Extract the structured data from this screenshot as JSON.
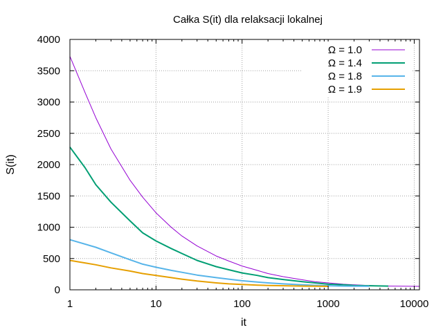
{
  "chart_data": {
    "type": "line",
    "title": "Całka S(it) dla relaksacji lokalnej",
    "xlabel": "it",
    "ylabel": "S(it)",
    "x_scale": "log",
    "xlim": [
      1,
      11500
    ],
    "ylim": [
      0,
      4000
    ],
    "grid": true,
    "legend_position": "top-right",
    "x_ticks": [
      1,
      10,
      100,
      1000,
      10000
    ],
    "x_tick_labels": [
      "1",
      "10",
      "100",
      "1000",
      "10000"
    ],
    "y_ticks": [
      0,
      500,
      1000,
      1500,
      2000,
      2500,
      3000,
      3500,
      4000
    ],
    "y_tick_labels": [
      "0",
      "500",
      "1000",
      "1500",
      "2000",
      "2500",
      "3000",
      "3500",
      "4000"
    ],
    "series": [
      {
        "name": "Ω = 1.0",
        "color": "#9400d3",
        "x": [
          1,
          1.5,
          2,
          3,
          5,
          7,
          10,
          15,
          20,
          30,
          50,
          70,
          100,
          150,
          200,
          300,
          500,
          700,
          1000,
          1500,
          2000,
          3000,
          5000,
          7000,
          11500
        ],
        "y": [
          3730,
          3150,
          2750,
          2250,
          1750,
          1480,
          1230,
          1000,
          860,
          700,
          540,
          460,
          380,
          310,
          260,
          210,
          160,
          130,
          110,
          90,
          80,
          70,
          60,
          58,
          55
        ]
      },
      {
        "name": "Ω = 1.4",
        "color": "#009e73",
        "x": [
          1,
          1.5,
          2,
          3,
          5,
          7,
          10,
          15,
          20,
          30,
          50,
          70,
          100,
          150,
          200,
          300,
          500,
          700,
          1000,
          1500,
          2000,
          3000,
          5000
        ],
        "y": [
          2280,
          1950,
          1680,
          1400,
          1100,
          910,
          780,
          660,
          580,
          470,
          370,
          320,
          270,
          230,
          195,
          165,
          130,
          110,
          90,
          80,
          70,
          65,
          60
        ]
      },
      {
        "name": "Ω = 1.8",
        "color": "#56b4e9",
        "x": [
          1,
          2,
          3,
          5,
          7,
          10,
          15,
          20,
          30,
          50,
          70,
          100,
          150,
          200,
          300,
          500,
          700,
          1000,
          1500,
          2000,
          3000
        ],
        "y": [
          800,
          680,
          590,
          480,
          410,
          360,
          310,
          280,
          235,
          195,
          170,
          145,
          125,
          110,
          95,
          80,
          72,
          65,
          60,
          58,
          56
        ]
      },
      {
        "name": "Ω = 1.9",
        "color": "#e69f00",
        "x": [
          1,
          2,
          3,
          5,
          7,
          10,
          15,
          20,
          30,
          50,
          70,
          100,
          150,
          200,
          300,
          500,
          700,
          1000
        ],
        "y": [
          470,
          400,
          350,
          300,
          260,
          230,
          195,
          170,
          140,
          110,
          95,
          85,
          75,
          70,
          65,
          60,
          57,
          55
        ]
      }
    ]
  }
}
